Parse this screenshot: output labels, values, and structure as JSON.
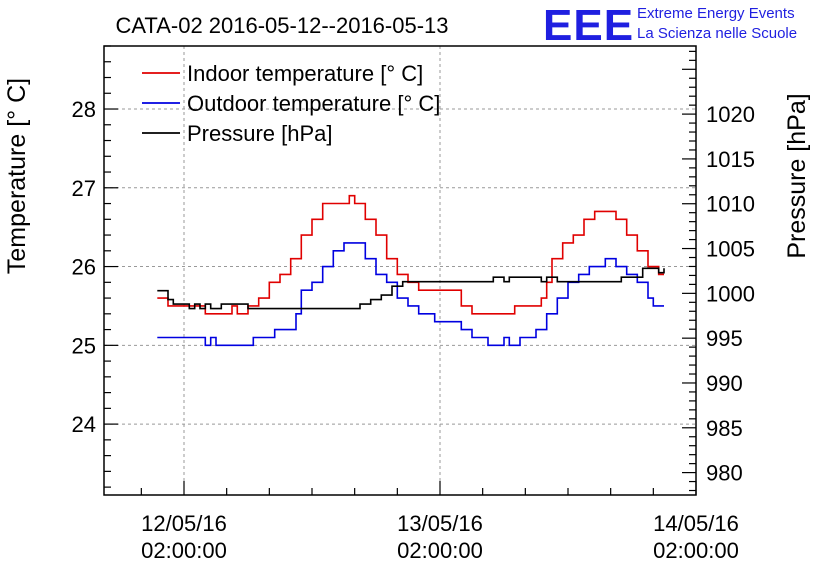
{
  "chart_data": {
    "type": "line",
    "title": "CATA-02 2016-05-12--2016-05-13",
    "ylabel": "Temperature [° C]",
    "y2label": "Pressure [hPa]",
    "xlabel": "",
    "x_ticks": [
      {
        "value": 0,
        "date": "12/05/16",
        "time": "02:00:00"
      },
      {
        "value": 24,
        "date": "13/05/16",
        "time": "02:00:00"
      },
      {
        "value": 48,
        "date": "14/05/16",
        "time": "02:00:00"
      }
    ],
    "xlim": [
      -7.5,
      48
    ],
    "ylim": [
      23.1,
      28.8
    ],
    "y_ticks": [
      24,
      25,
      26,
      27,
      28
    ],
    "y2lim": [
      977.5,
      1027.6
    ],
    "y2_ticks": [
      980,
      985,
      990,
      995,
      1000,
      1005,
      1010,
      1015,
      1020
    ],
    "grid": true,
    "legend_position": "top-left",
    "x_unit": "hours since 12/05/16 02:00:00",
    "series": [
      {
        "name": "Indoor temperature [° C]",
        "color": "#e00000",
        "axis": "left",
        "points": [
          [
            -2.5,
            25.6
          ],
          [
            -2.0,
            25.6
          ],
          [
            -1.5,
            25.5
          ],
          [
            -0.5,
            25.5
          ],
          [
            1.5,
            25.5
          ],
          [
            2.0,
            25.4
          ],
          [
            4.0,
            25.4
          ],
          [
            4.5,
            25.5
          ],
          [
            5.0,
            25.4
          ],
          [
            6.0,
            25.5
          ],
          [
            7.0,
            25.6
          ],
          [
            8.0,
            25.8
          ],
          [
            9.0,
            25.9
          ],
          [
            10.0,
            26.1
          ],
          [
            11.0,
            26.4
          ],
          [
            12.0,
            26.6
          ],
          [
            13.0,
            26.8
          ],
          [
            14.5,
            26.8
          ],
          [
            15.5,
            26.9
          ],
          [
            16.0,
            26.8
          ],
          [
            17.0,
            26.6
          ],
          [
            18.0,
            26.4
          ],
          [
            19.0,
            26.1
          ],
          [
            20.0,
            25.9
          ],
          [
            21.0,
            25.8
          ],
          [
            22.0,
            25.7
          ],
          [
            24.5,
            25.7
          ],
          [
            26.0,
            25.5
          ],
          [
            27.0,
            25.4
          ],
          [
            30.0,
            25.4
          ],
          [
            31.0,
            25.5
          ],
          [
            32.5,
            25.5
          ],
          [
            33.5,
            25.6
          ],
          [
            34.0,
            25.8
          ],
          [
            34.5,
            26.1
          ],
          [
            35.5,
            26.3
          ],
          [
            36.5,
            26.4
          ],
          [
            37.5,
            26.6
          ],
          [
            38.5,
            26.7
          ],
          [
            39.5,
            26.7
          ],
          [
            40.5,
            26.6
          ],
          [
            41.5,
            26.4
          ],
          [
            42.5,
            26.2
          ],
          [
            43.5,
            26.0
          ],
          [
            44.0,
            26.0
          ],
          [
            44.5,
            25.9
          ],
          [
            45.0,
            25.9
          ]
        ]
      },
      {
        "name": "Outdoor temperature [° C]",
        "color": "#0000e0",
        "axis": "left",
        "points": [
          [
            -2.5,
            25.1
          ],
          [
            1.5,
            25.1
          ],
          [
            2.0,
            25.0
          ],
          [
            2.5,
            25.1
          ],
          [
            3.0,
            25.0
          ],
          [
            6.0,
            25.0
          ],
          [
            6.5,
            25.1
          ],
          [
            7.5,
            25.1
          ],
          [
            8.5,
            25.2
          ],
          [
            9.5,
            25.2
          ],
          [
            10.5,
            25.4
          ],
          [
            11.0,
            25.7
          ],
          [
            12.0,
            25.8
          ],
          [
            13.0,
            26.0
          ],
          [
            14.0,
            26.2
          ],
          [
            15.0,
            26.3
          ],
          [
            16.5,
            26.3
          ],
          [
            17.0,
            26.1
          ],
          [
            18.0,
            25.9
          ],
          [
            19.0,
            25.8
          ],
          [
            20.0,
            25.6
          ],
          [
            21.0,
            25.5
          ],
          [
            22.0,
            25.4
          ],
          [
            23.5,
            25.3
          ],
          [
            25.0,
            25.3
          ],
          [
            26.0,
            25.2
          ],
          [
            27.0,
            25.1
          ],
          [
            28.5,
            25.0
          ],
          [
            29.5,
            25.0
          ],
          [
            30.0,
            25.1
          ],
          [
            30.5,
            25.0
          ],
          [
            31.0,
            25.0
          ],
          [
            31.5,
            25.1
          ],
          [
            32.5,
            25.1
          ],
          [
            33.0,
            25.2
          ],
          [
            34.0,
            25.4
          ],
          [
            35.0,
            25.6
          ],
          [
            36.0,
            25.8
          ],
          [
            37.0,
            25.9
          ],
          [
            38.0,
            26.0
          ],
          [
            39.5,
            26.1
          ],
          [
            40.5,
            26.0
          ],
          [
            41.5,
            25.9
          ],
          [
            42.5,
            25.8
          ],
          [
            43.5,
            25.6
          ],
          [
            44.0,
            25.5
          ],
          [
            45.0,
            25.5
          ]
        ]
      },
      {
        "name": "Pressure [hPa]",
        "color": "#000000",
        "axis": "right",
        "points": [
          [
            -2.5,
            1000.3
          ],
          [
            -1.5,
            999.3
          ],
          [
            -1.0,
            998.8
          ],
          [
            0.0,
            998.8
          ],
          [
            0.5,
            998.3
          ],
          [
            1.0,
            998.8
          ],
          [
            1.5,
            998.3
          ],
          [
            2.0,
            998.8
          ],
          [
            2.5,
            998.3
          ],
          [
            3.5,
            998.8
          ],
          [
            5.5,
            998.8
          ],
          [
            6.0,
            998.3
          ],
          [
            16.0,
            998.3
          ],
          [
            16.5,
            998.8
          ],
          [
            17.5,
            999.3
          ],
          [
            18.5,
            999.8
          ],
          [
            19.5,
            1000.8
          ],
          [
            20.5,
            1001.3
          ],
          [
            28.5,
            1001.3
          ],
          [
            29.0,
            1001.8
          ],
          [
            30.0,
            1001.3
          ],
          [
            30.5,
            1001.8
          ],
          [
            33.0,
            1001.8
          ],
          [
            33.5,
            1001.3
          ],
          [
            34.0,
            1001.8
          ],
          [
            35.0,
            1001.3
          ],
          [
            38.0,
            1001.3
          ],
          [
            39.5,
            1001.3
          ],
          [
            41.0,
            1001.8
          ],
          [
            42.5,
            1001.8
          ],
          [
            43.0,
            1002.8
          ],
          [
            44.0,
            1002.8
          ],
          [
            44.5,
            1002.3
          ],
          [
            45.0,
            1002.8
          ]
        ]
      }
    ]
  },
  "logo": {
    "letters": "EEE",
    "line1": "Extreme Energy Events",
    "line2": "La Scienza nelle Scuole"
  }
}
